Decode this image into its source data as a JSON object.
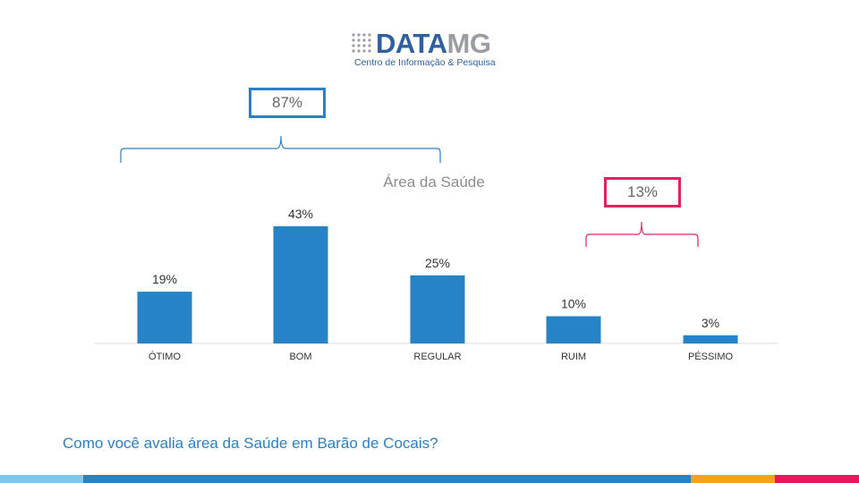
{
  "brand": {
    "name_part1": "DATA",
    "name_part2": "MG",
    "tagline": "Centro de Informação & Pesquisa",
    "color_primary": "#2e5f9e",
    "color_secondary": "#9a9ea4"
  },
  "groups": {
    "positive": {
      "label": "87%",
      "color": "#2e7fc1"
    },
    "negative": {
      "label": "13%",
      "color": "#e0235e"
    }
  },
  "question": "Como você avalia área da Saúde em Barão de Cocais?",
  "chart_data": {
    "type": "bar",
    "title": "Área da Saúde",
    "categories": [
      "ÓTIMO",
      "BOM",
      "REGULAR",
      "RUIM",
      "PÉSSIMO"
    ],
    "values": [
      19,
      43,
      25,
      10,
      3
    ],
    "value_labels": [
      "19%",
      "43%",
      "25%",
      "10%",
      "3%"
    ],
    "bar_color": "#2683c6",
    "grid": false,
    "legend": "none"
  },
  "footer_colors": [
    "#7ec8ef",
    "#2683c6",
    "#f7a21b",
    "#e8175d"
  ]
}
